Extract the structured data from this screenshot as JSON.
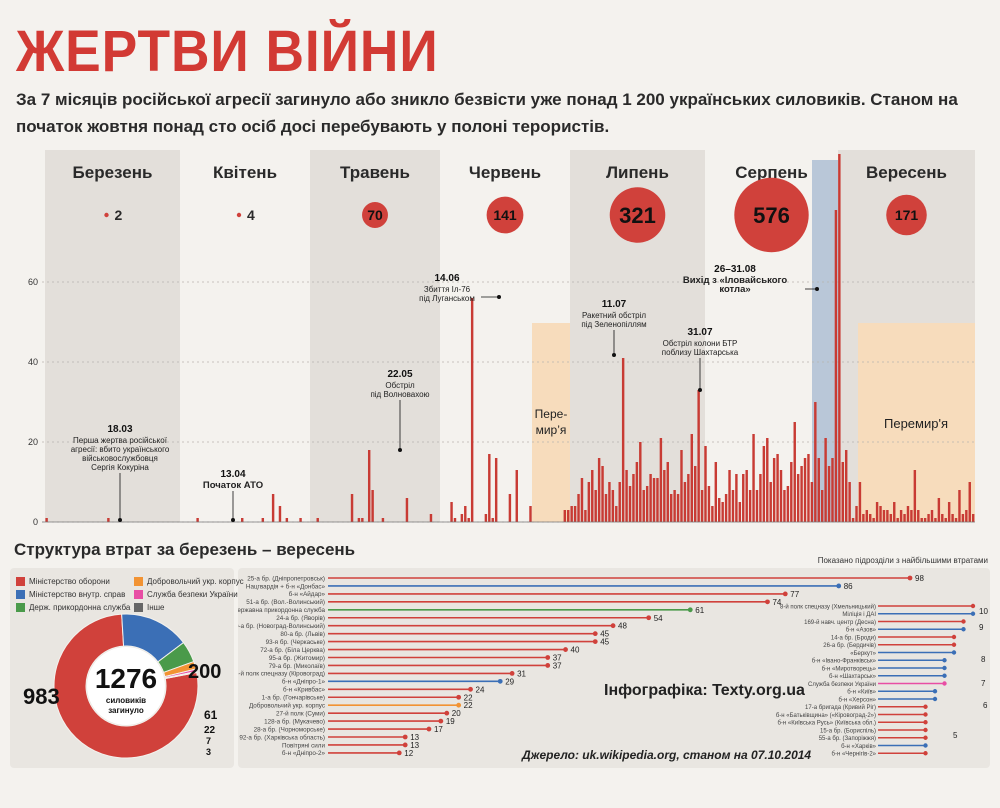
{
  "header": {
    "title": "ЖЕРТВИ ВІЙНИ",
    "subtitle": "За 7 місяців російської агресії загинуло або зникло безвісти уже понад 1 200 українських силовиків. Станом на початок жовтня понад сто осіб досі перебувають у полоні терористів."
  },
  "chart_data": [
    {
      "type": "bar",
      "title": "",
      "ylabel": "",
      "y_ticks": [
        0,
        20,
        40,
        60
      ],
      "ylim": [
        0,
        60
      ],
      "months": [
        {
          "name": "Березень",
          "total": "2",
          "value": 2
        },
        {
          "name": "Квітень",
          "total": "4",
          "value": 4
        },
        {
          "name": "Травень",
          "total": "70",
          "value": 70
        },
        {
          "name": "Червень",
          "total": "141",
          "value": 141
        },
        {
          "name": "Липень",
          "total": "321",
          "value": 321
        },
        {
          "name": "Серпень",
          "total": "576",
          "value": 576
        },
        {
          "name": "Вересень",
          "total": "171",
          "value": 171
        }
      ],
      "daily_values": [
        1,
        0,
        0,
        0,
        0,
        0,
        0,
        0,
        0,
        0,
        0,
        0,
        0,
        0,
        0,
        0,
        0,
        0,
        1,
        0,
        0,
        0,
        0,
        0,
        0,
        0,
        0,
        0,
        0,
        0,
        0,
        0,
        0,
        0,
        0,
        0,
        0,
        0,
        0,
        0,
        0,
        0,
        0,
        0,
        1,
        0,
        0,
        0,
        0,
        0,
        0,
        0,
        0,
        0,
        0,
        0,
        0,
        1,
        0,
        0,
        0,
        0,
        0,
        1,
        0,
        0,
        7,
        0,
        4,
        0,
        1,
        0,
        0,
        0,
        1,
        0,
        0,
        0,
        0,
        1,
        0,
        0,
        0,
        0,
        0,
        0,
        0,
        0,
        0,
        7,
        0,
        1,
        1,
        0,
        18,
        8,
        0,
        0,
        1,
        0,
        0,
        0,
        0,
        0,
        0,
        6,
        0,
        0,
        0,
        0,
        0,
        0,
        2,
        0,
        0,
        0,
        0,
        0,
        5,
        1,
        0,
        2,
        4,
        1,
        56,
        0,
        0,
        0,
        2,
        17,
        1,
        16,
        0,
        0,
        0,
        7,
        0,
        13,
        0,
        0,
        0,
        4,
        0,
        0,
        0,
        0,
        0,
        0,
        0,
        0,
        0,
        3,
        3,
        4,
        4,
        7,
        11,
        3,
        10,
        13,
        8,
        16,
        14,
        7,
        10,
        8,
        4,
        10,
        41,
        13,
        9,
        12,
        15,
        20,
        8,
        9,
        12,
        11,
        11,
        21,
        13,
        15,
        7,
        8,
        7,
        18,
        10,
        12,
        22,
        14,
        33,
        8,
        19,
        9,
        4,
        15,
        6,
        5,
        7,
        13,
        8,
        12,
        5,
        12,
        13,
        8,
        22,
        8,
        12,
        19,
        21,
        10,
        16,
        17,
        13,
        8,
        9,
        15,
        25,
        12,
        14,
        16,
        17,
        10,
        30,
        16,
        8,
        21,
        14,
        16,
        78,
        92,
        15,
        18,
        10,
        1,
        4,
        10,
        2,
        3,
        2,
        1,
        5,
        4,
        3,
        3,
        2,
        5,
        1,
        3,
        2,
        4,
        3,
        13,
        3,
        1,
        1,
        2,
        3,
        1,
        6,
        2,
        1,
        5,
        2,
        1,
        8,
        2,
        3,
        10,
        2
      ],
      "annotations": [
        {
          "date": "18.03",
          "text": [
            "Перша жертва російської",
            "агресії: вбито українського",
            "військовослужбовця",
            "Сергія Кокуріна"
          ]
        },
        {
          "date": "13.04",
          "text": [
            "Початок АТО"
          ]
        },
        {
          "date": "22.05",
          "text": [
            "Обстріл",
            "під Волновахою"
          ]
        },
        {
          "date": "14.06",
          "text": [
            "Збиття Іл-76",
            "під Луганськом"
          ]
        },
        {
          "date": "11.07",
          "text": [
            "Ракетний обстріл",
            "під Зеленопіллям"
          ]
        },
        {
          "date": "31.07",
          "text": [
            "Обстріл колони БТР",
            "поблизу Шахтарська"
          ]
        },
        {
          "date": "26–31.08",
          "text": [
            "Вихід з «Іловайського",
            "котла»"
          ]
        }
      ],
      "truce_labels": {
        "june": "Пере-мир'я",
        "september": "Перемир'я"
      }
    },
    {
      "type": "pie",
      "title": "Структура втрат за березень – вересень",
      "center_value": "1276",
      "center_label": "силовиків загинуло",
      "slices": [
        {
          "name": "Міністерство оборони",
          "value": 983,
          "color": "#d0413b"
        },
        {
          "name": "Міністерство внутр. справ",
          "value": 200,
          "color": "#3b6fb6"
        },
        {
          "name": "Держ. прикордонна служба",
          "value": 61,
          "color": "#4a9a4a"
        },
        {
          "name": "Добровольчий укр. корпус",
          "value": 22,
          "color": "#f29333"
        },
        {
          "name": "Служба безпеки України",
          "value": 7,
          "color": "#e84ea4"
        },
        {
          "name": "Інше",
          "value": 3,
          "color": "#666666"
        }
      ]
    },
    {
      "type": "bar",
      "title": "",
      "note": "Показано підрозділи з найбільшими втратами",
      "credit": "Інфографіка: Texty.org.ua",
      "source": "Джерело: uk.wikipedia.org, станом на 07.10.2014",
      "xlim": [
        0,
        98
      ],
      "left_units": [
        {
          "name": "25-а бр. (Дніпропетровськ)",
          "value": 98,
          "color": "#d0413b"
        },
        {
          "name": "Нацгвардія + б-н «Донбас»",
          "value": 86,
          "color": "#3b6fb6"
        },
        {
          "name": "б-н «Айдар»",
          "value": 77,
          "color": "#d0413b"
        },
        {
          "name": "51-а бр. (Вол.-Волинський)",
          "value": 74,
          "color": "#d0413b"
        },
        {
          "name": "Державна прикордонна служба",
          "value": 61,
          "color": "#4a9a4a"
        },
        {
          "name": "24-а бр. (Яворів)",
          "value": 54,
          "color": "#d0413b"
        },
        {
          "name": "30-а бр. (Новоград-Волинський)",
          "value": 48,
          "color": "#d0413b"
        },
        {
          "name": "80-а бр. (Львів)",
          "value": 45,
          "color": "#d0413b"
        },
        {
          "name": "93-я бр. (Черкаське)",
          "value": 45,
          "color": "#d0413b"
        },
        {
          "name": "72-а бр. (Біла Церква)",
          "value": 40,
          "color": "#d0413b"
        },
        {
          "name": "95-а бр. (Житомир)",
          "value": 37,
          "color": "#d0413b"
        },
        {
          "name": "79-а бр. (Миколаїв)",
          "value": 37,
          "color": "#d0413b"
        },
        {
          "name": "3-й полк спецназу (Кіровоград)",
          "value": 31,
          "color": "#d0413b"
        },
        {
          "name": "б-н «Дніпро-1»",
          "value": 29,
          "color": "#3b6fb6"
        },
        {
          "name": "б-н «Кривбас»",
          "value": 24,
          "color": "#d0413b"
        },
        {
          "name": "1-а бр. (Гончарівське)",
          "value": 22,
          "color": "#d0413b"
        },
        {
          "name": "Добровольчий укр. корпус",
          "value": 22,
          "color": "#f29333"
        },
        {
          "name": "27-й полк (Суми)",
          "value": 20,
          "color": "#d0413b"
        },
        {
          "name": "128-а бр. (Мукачево)",
          "value": 19,
          "color": "#d0413b"
        },
        {
          "name": "28-а бр. (Чорноморське)",
          "value": 17,
          "color": "#d0413b"
        },
        {
          "name": "92-а бр. (Харківська область)",
          "value": 13,
          "color": "#d0413b"
        },
        {
          "name": "Повітряні сили",
          "value": 13,
          "color": "#d0413b"
        },
        {
          "name": "б-н «Дніпро-2»",
          "value": 12,
          "color": "#d0413b"
        }
      ],
      "right_units": [
        {
          "name": "8-й полк спецназу (Хмельницький)",
          "value": 10,
          "color": "#d0413b"
        },
        {
          "name": "Міліція і ДАІ",
          "value": 10,
          "color": "#3b6fb6"
        },
        {
          "name": "169-й навч. центр (Десна)",
          "value": 9,
          "color": "#d0413b"
        },
        {
          "name": "б-н «Азов»",
          "value": 9,
          "color": "#3b6fb6"
        },
        {
          "name": "14-а бр. (Броди)",
          "value": 8,
          "color": "#d0413b"
        },
        {
          "name": "26-а бр. (Бердичів)",
          "value": 8,
          "color": "#d0413b"
        },
        {
          "name": "«Беркут»",
          "value": 8,
          "color": "#3b6fb6"
        },
        {
          "name": "б-н «Івано-Франківськ»",
          "value": 7,
          "color": "#3b6fb6"
        },
        {
          "name": "б-н «Миротворець»",
          "value": 7,
          "color": "#3b6fb6"
        },
        {
          "name": "б-н «Шахтарськ»",
          "value": 7,
          "color": "#3b6fb6"
        },
        {
          "name": "Служба безпеки України",
          "value": 7,
          "color": "#e84ea4"
        },
        {
          "name": "б-н «Київ»",
          "value": 6,
          "color": "#3b6fb6"
        },
        {
          "name": "б-н «Херсон»",
          "value": 6,
          "color": "#3b6fb6"
        },
        {
          "name": "17-а бригада (Кривий Ріг)",
          "value": 5,
          "color": "#d0413b"
        },
        {
          "name": "б-н «Батьківщина» («Кіровоград-2»)",
          "value": 5,
          "color": "#d0413b"
        },
        {
          "name": "б-н «Київська Русь» (Київська обл.)",
          "value": 5,
          "color": "#d0413b"
        },
        {
          "name": "15-а бр. (Бориспіль)",
          "value": 5,
          "color": "#d0413b"
        },
        {
          "name": "55-а бр. (Запоріжжя)",
          "value": 5,
          "color": "#d0413b"
        },
        {
          "name": "б-н «Харків»",
          "value": 5,
          "color": "#3b6fb6"
        },
        {
          "name": "б-н «Чернігів-2»",
          "value": 5,
          "color": "#d0413b"
        }
      ],
      "right_value_labels": [
        "10",
        "9",
        "8",
        "7",
        "6",
        "5"
      ]
    }
  ]
}
